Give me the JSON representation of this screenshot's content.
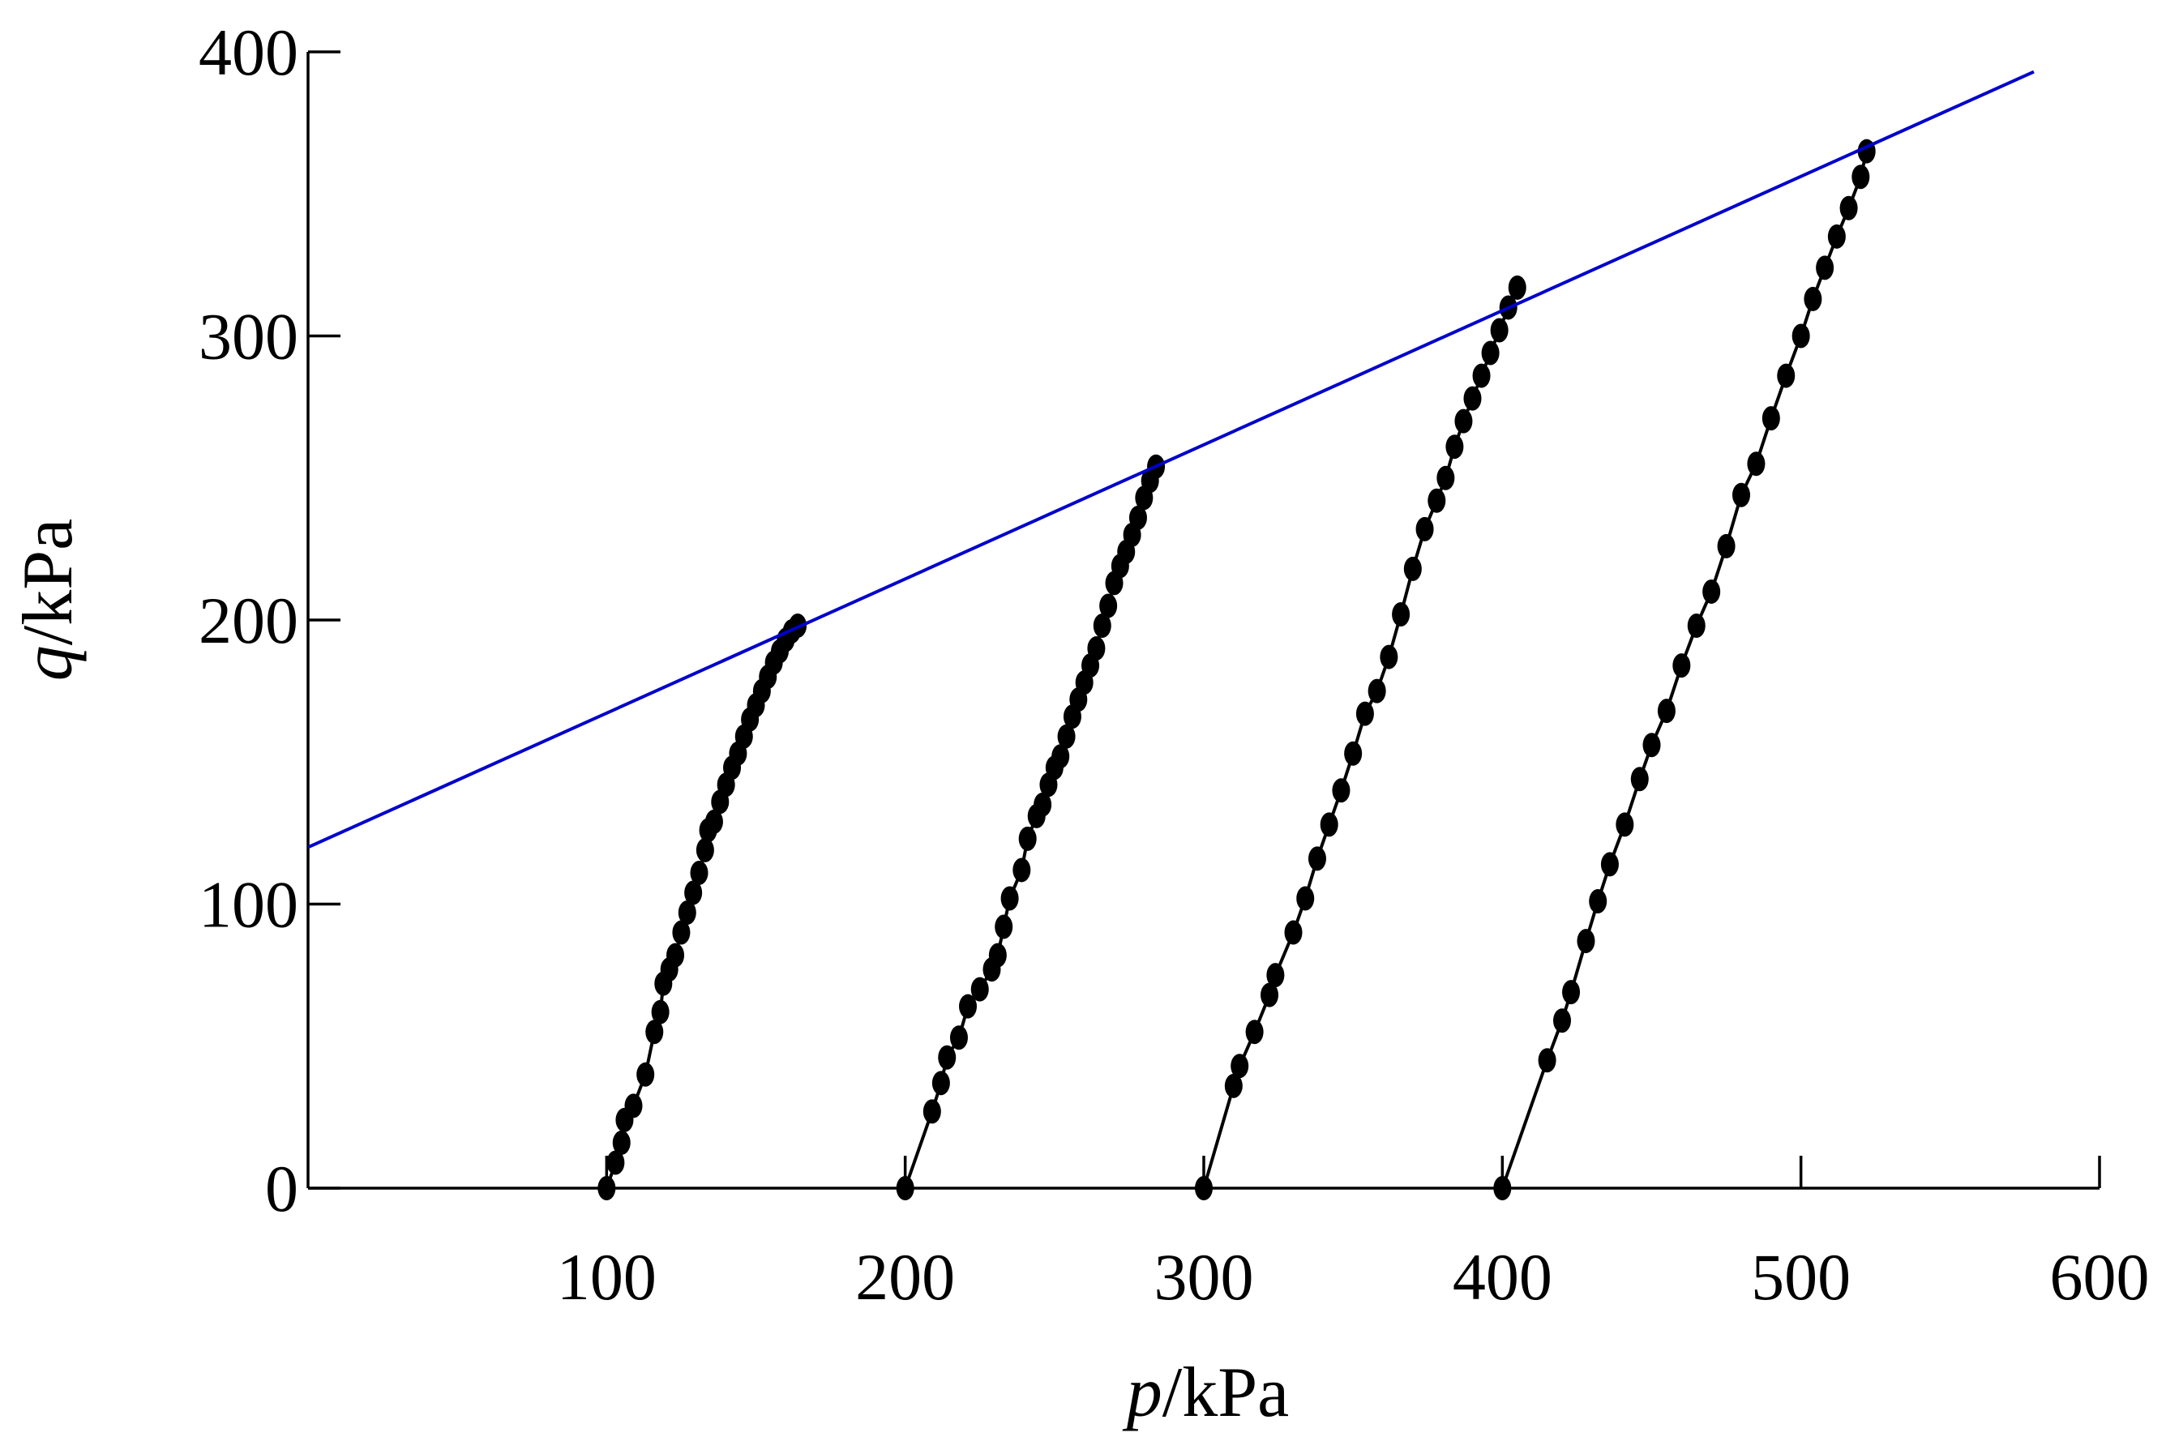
{
  "chart_data": {
    "type": "line",
    "xlabel_var": "p",
    "xlabel_unit": "/kPa",
    "ylabel_var": "q",
    "ylabel_unit": "/kPa",
    "xlim": [
      0,
      600
    ],
    "ylim": [
      0,
      400
    ],
    "x_ticks": [
      100,
      200,
      300,
      400,
      500,
      600
    ],
    "x_tick_labels": [
      "100",
      "200",
      "300",
      "400",
      "500",
      "600"
    ],
    "y_ticks": [
      0,
      100,
      200,
      300,
      400
    ],
    "y_tick_labels": [
      "0",
      "100",
      "200",
      "300",
      "400"
    ],
    "grid": false,
    "colors": {
      "path": "#000000",
      "envelope": "#0000cc"
    },
    "series": [
      {
        "x": [
          100,
          103,
          105,
          106,
          109,
          113,
          116,
          118,
          119,
          121,
          123,
          125,
          127,
          129,
          131,
          133,
          134,
          136,
          138,
          140,
          142,
          144,
          146,
          148,
          150,
          152,
          154,
          156,
          158,
          160,
          162,
          164
        ],
        "y": [
          0,
          9,
          16,
          24,
          29,
          40,
          55,
          62,
          72,
          77,
          82,
          90,
          97,
          104,
          111,
          119,
          126,
          129,
          136,
          142,
          148,
          153,
          159,
          165,
          170,
          175,
          180,
          185,
          189,
          193,
          196,
          198
        ]
      },
      {
        "x": [
          200,
          209,
          212,
          214,
          218,
          221,
          225,
          229,
          231,
          233,
          235,
          239,
          241,
          244,
          246,
          248,
          250,
          252,
          254,
          256,
          258,
          260,
          262,
          264,
          266,
          268,
          270,
          272,
          274,
          276,
          278,
          280,
          282,
          284
        ],
        "y": [
          0,
          27,
          37,
          46,
          53,
          64,
          70,
          77,
          82,
          92,
          102,
          112,
          123,
          131,
          135,
          142,
          148,
          152,
          159,
          166,
          172,
          178,
          184,
          190,
          198,
          205,
          213,
          219,
          224,
          230,
          236,
          243,
          249,
          254
        ]
      },
      {
        "x": [
          300,
          310,
          312,
          317,
          322,
          324,
          330,
          334,
          338,
          342,
          346,
          350,
          354,
          358,
          362,
          366,
          370,
          374,
          378,
          381,
          384,
          387,
          390,
          393,
          396,
          399,
          402,
          405
        ],
        "y": [
          0,
          36,
          43,
          55,
          68,
          75,
          90,
          102,
          116,
          128,
          140,
          153,
          167,
          175,
          187,
          202,
          218,
          232,
          242,
          250,
          261,
          270,
          278,
          286,
          294,
          302,
          310,
          317
        ]
      },
      {
        "x": [
          400,
          415,
          420,
          423,
          428,
          432,
          436,
          441,
          446,
          450,
          455,
          460,
          465,
          470,
          475,
          480,
          485,
          490,
          495,
          500,
          504,
          508,
          512,
          516,
          520,
          522
        ],
        "y": [
          0,
          45,
          59,
          69,
          87,
          101,
          114,
          128,
          144,
          156,
          168,
          184,
          198,
          210,
          226,
          244,
          255,
          271,
          286,
          300,
          313,
          324,
          335,
          345,
          356,
          365
        ]
      }
    ],
    "envelope": {
      "x": [
        0,
        578
      ],
      "y": [
        120,
        393
      ]
    }
  }
}
